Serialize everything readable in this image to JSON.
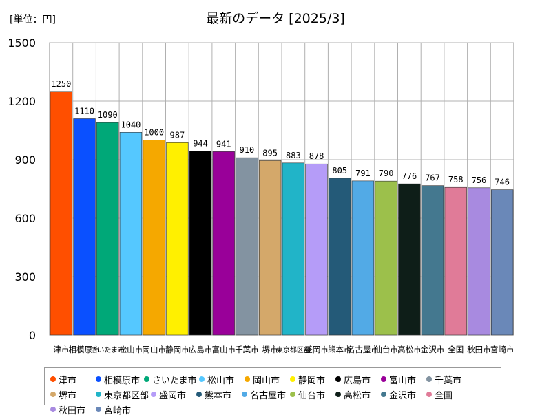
{
  "unit_label": "[単位：円]",
  "chart_data": {
    "type": "bar",
    "title": "最新のデータ [2025/3]",
    "xlabel": "",
    "ylabel": "",
    "ylim": [
      0,
      1500
    ],
    "yticks": [
      0,
      300,
      600,
      900,
      1200,
      1500
    ],
    "grid": true,
    "legend_position": "bottom",
    "categories": [
      "津市",
      "相模原市",
      "さいたま市",
      "松山市",
      "岡山市",
      "静岡市",
      "広島市",
      "富山市",
      "千葉市",
      "堺市",
      "東京都区部",
      "盛岡市",
      "熊本市",
      "名古屋市",
      "仙台市",
      "高松市",
      "金沢市",
      "全国",
      "秋田市",
      "宮崎市"
    ],
    "values": [
      1250,
      1110,
      1090,
      1040,
      1000,
      987,
      944,
      941,
      910,
      895,
      883,
      878,
      805,
      791,
      790,
      776,
      767,
      758,
      756,
      746
    ],
    "colors": [
      "#ff4f00",
      "#0a50ff",
      "#00a878",
      "#55c8ff",
      "#f5a800",
      "#fff000",
      "#000000",
      "#990099",
      "#8393a1",
      "#d4a86a",
      "#21b4c8",
      "#b59cf8",
      "#245a78",
      "#52aae6",
      "#9cc04b",
      "#0e1e18",
      "#44788f",
      "#e07b98",
      "#a88ae0",
      "#6a88b8"
    ]
  }
}
